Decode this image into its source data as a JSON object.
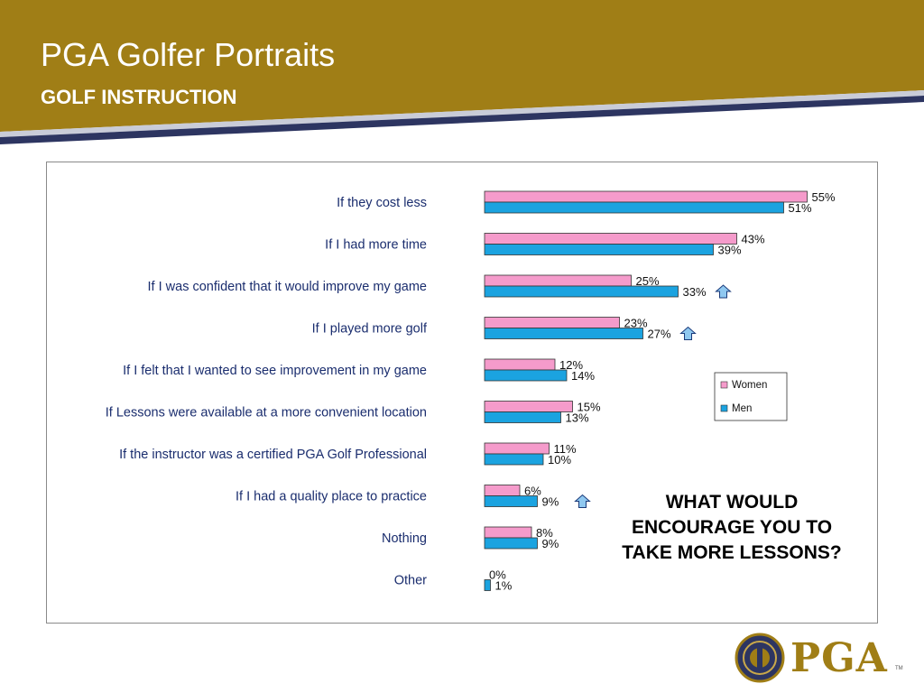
{
  "header": {
    "title": "PGA Golfer Portraits",
    "subtitle": "GOLF INSTRUCTION",
    "colors": {
      "band": "#A07E16",
      "stripe_navy": "#2D3561",
      "stripe_light": "#C9CCD8"
    }
  },
  "callout": {
    "lines": [
      "WHAT WOULD",
      "ENCOURAGE YOU TO",
      "TAKE MORE LESSONS?"
    ]
  },
  "chart_data": {
    "type": "bar",
    "orientation": "horizontal",
    "categories": [
      "If they cost less",
      "If I had more time",
      "If I was confident that it would improve my game",
      "If I played more golf",
      "If I felt that I wanted to see improvement in my game",
      "If Lessons were available at a more convenient location",
      "If the instructor was a certified PGA Golf Professional",
      "If I had a quality place to practice",
      "Nothing",
      "Other"
    ],
    "series": [
      {
        "name": "Women",
        "color": "#F59BCB",
        "values": [
          55,
          43,
          25,
          23,
          12,
          15,
          11,
          6,
          8,
          0
        ],
        "labels": [
          "55%",
          "43%",
          "25%",
          "23%",
          "12%",
          "15%",
          "11%",
          "6%",
          "8%",
          "0%"
        ]
      },
      {
        "name": "Men",
        "color": "#1BA3E0",
        "values": [
          51,
          39,
          33,
          27,
          14,
          13,
          10,
          9,
          9,
          1
        ],
        "labels": [
          "51%",
          "39%",
          "33%",
          "27%",
          "14%",
          "13%",
          "10%",
          "9%",
          "9%",
          "1%"
        ]
      }
    ],
    "up_arrow_rows": [
      2,
      3,
      7
    ],
    "xlim": [
      0,
      55
    ],
    "legend": {
      "placement": "right",
      "entries": [
        "Women",
        "Men"
      ]
    },
    "grid": false,
    "xlabel": "",
    "ylabel": ""
  },
  "logo": {
    "text": "PGA",
    "mark": "TM",
    "color": "#A07E16",
    "icon": "pga-seal-icon"
  }
}
